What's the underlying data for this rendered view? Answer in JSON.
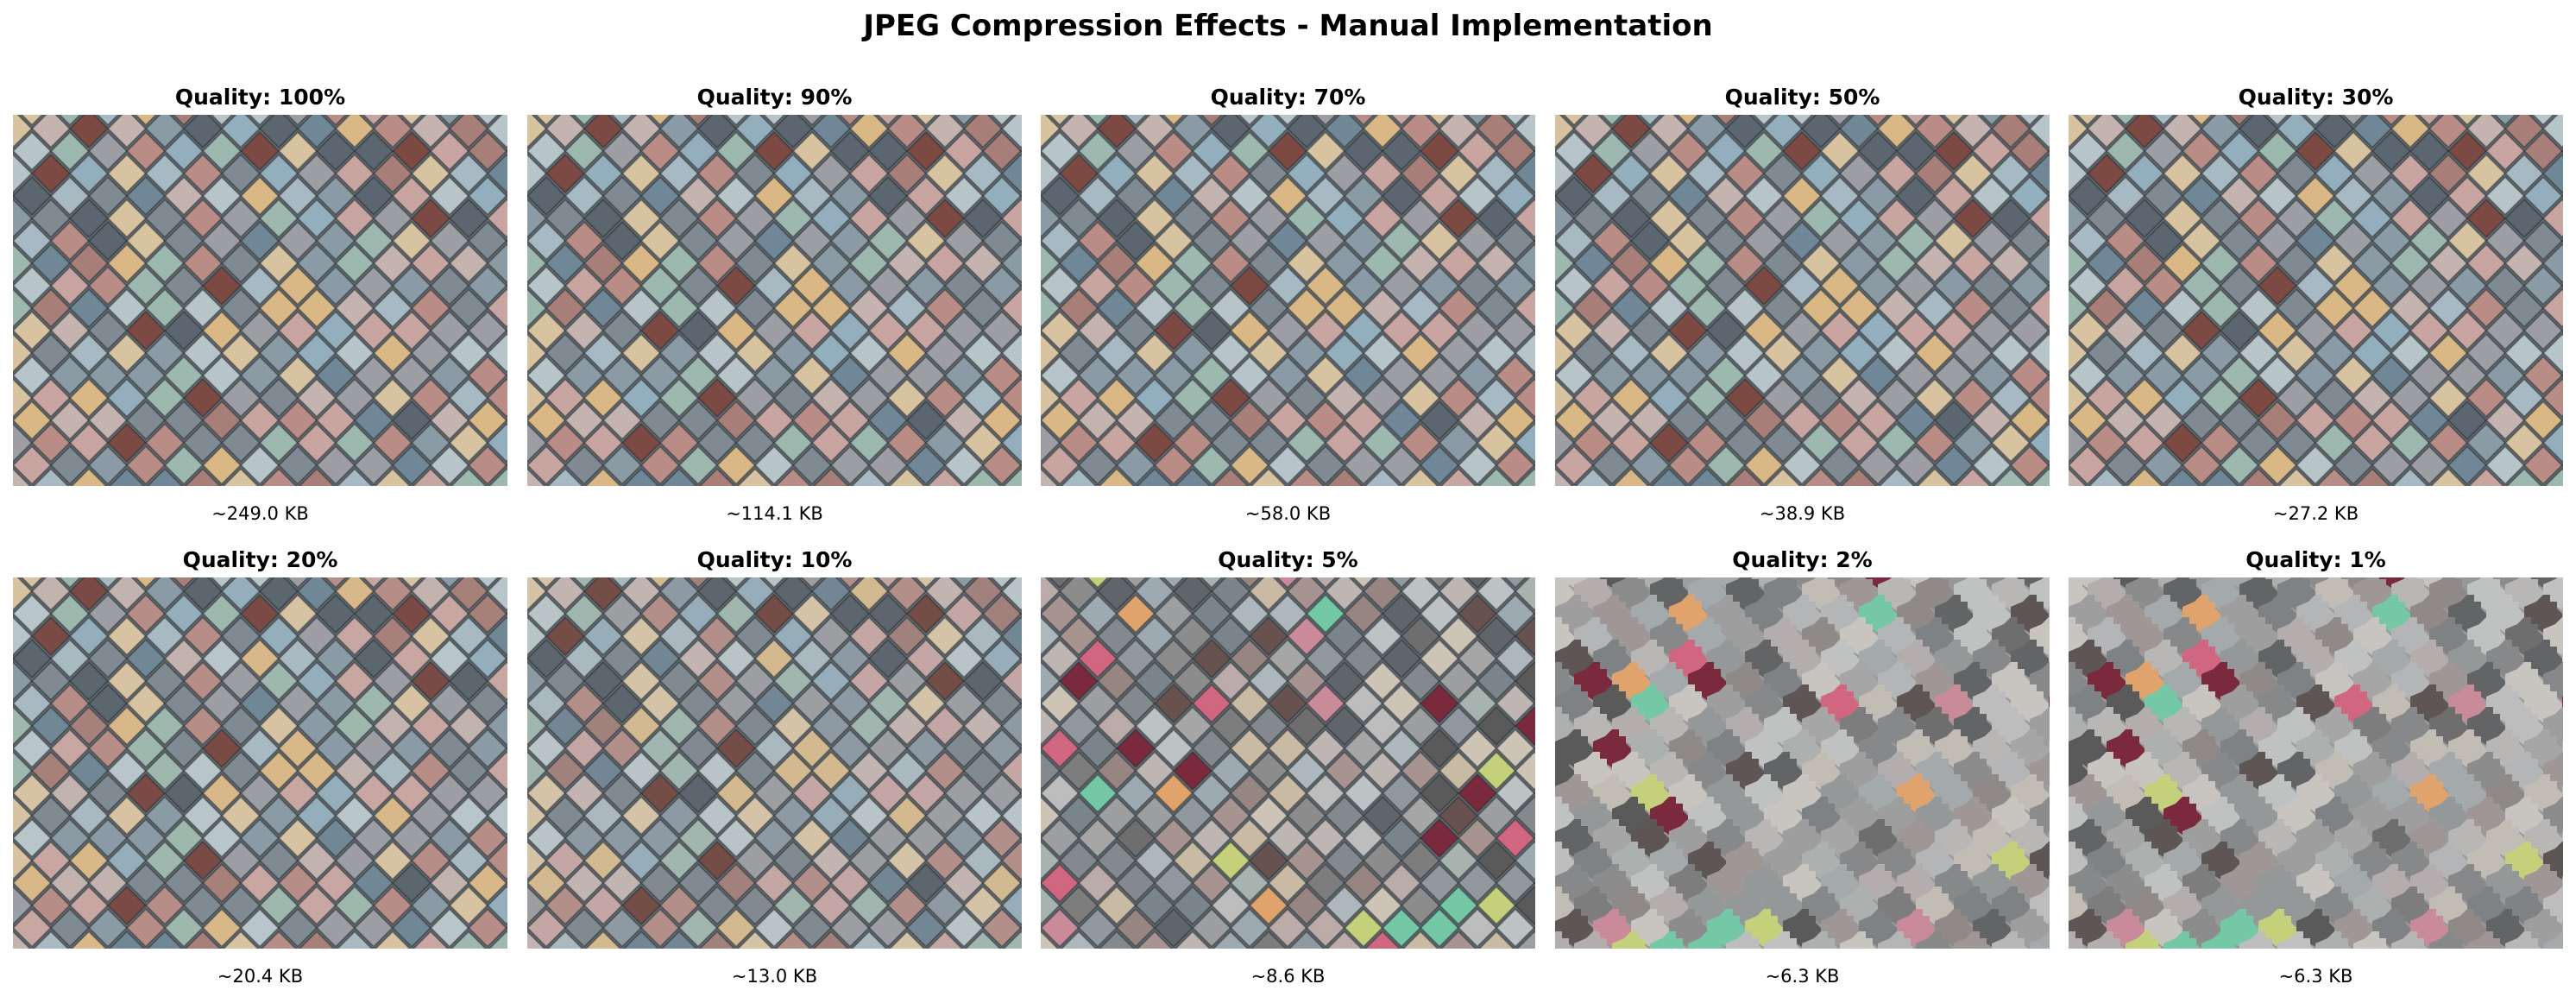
{
  "figure": {
    "title": "JPEG Compression Effects - Manual Implementation"
  },
  "panels": [
    {
      "title": "Quality: 100%",
      "size": "~249.0 KB",
      "quality": 100
    },
    {
      "title": "Quality: 90%",
      "size": "~114.1 KB",
      "quality": 90
    },
    {
      "title": "Quality: 70%",
      "size": "~58.0 KB",
      "quality": 70
    },
    {
      "title": "Quality: 50%",
      "size": "~38.9 KB",
      "quality": 50
    },
    {
      "title": "Quality: 30%",
      "size": "~27.2 KB",
      "quality": 30
    },
    {
      "title": "Quality: 20%",
      "size": "~20.4 KB",
      "quality": 20
    },
    {
      "title": "Quality: 10%",
      "size": "~13.0 KB",
      "quality": 10
    },
    {
      "title": "Quality: 5%",
      "size": "~8.6 KB",
      "quality": 5
    },
    {
      "title": "Quality: 2%",
      "size": "~6.3 KB",
      "quality": 2
    },
    {
      "title": "Quality: 1%",
      "size": "~6.3 KB",
      "quality": 1
    }
  ],
  "palette": [
    "#8a9ba6",
    "#a7b9c2",
    "#9db8ae",
    "#c9a5a1",
    "#b98c86",
    "#d8c3a0",
    "#7f8a93",
    "#5b6670",
    "#c4b3ae",
    "#6f8797",
    "#a77f78",
    "#b7c5c9",
    "#7c4a43",
    "#d9b885",
    "#93aebd",
    "#9c9ea3"
  ],
  "artifact_palette": [
    "#5a5a5a",
    "#6e6e6e",
    "#8c8c8c",
    "#a6a6a6",
    "#bdbdbd",
    "#7d7d7d",
    "#c98a9a",
    "#d0667f",
    "#74c8a6",
    "#e0a36c",
    "#c5d07a",
    "#7a2a3c"
  ]
}
